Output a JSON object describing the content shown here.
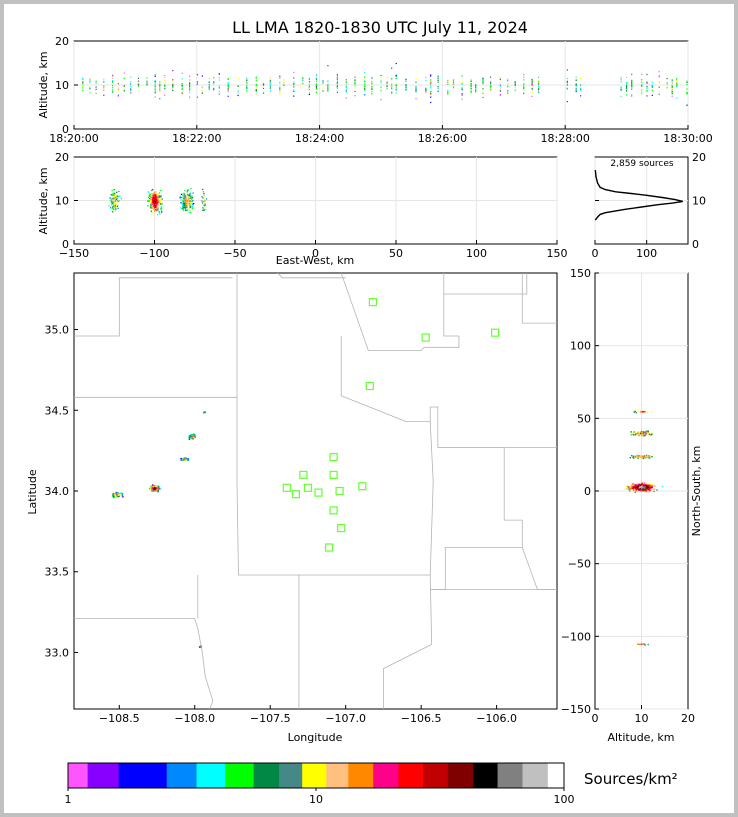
{
  "title": "LL LMA 1820-1830 UTC July 11, 2024",
  "chart_data": [
    {
      "panel": "altitude-time",
      "type": "scatter",
      "ylabel": "Altitude, km",
      "ylim": [
        0,
        20
      ],
      "yticks": [
        "0",
        "10",
        "20"
      ],
      "xticks": [
        "18:20:00",
        "18:22:00",
        "18:24:00",
        "18:26:00",
        "18:28:00",
        "18:30:00"
      ],
      "xlim_seconds": [
        0,
        600
      ],
      "grid": true,
      "note": "vertical streaks of sources around 5-15 km across the whole period"
    },
    {
      "panel": "altitude-eastwest",
      "type": "scatter",
      "xlabel": "East-West, km",
      "ylabel": "Altitude, km",
      "xlim": [
        -150,
        150
      ],
      "ylim": [
        0,
        20
      ],
      "xticks": [
        "−150",
        "−100",
        "−50",
        "0",
        "50",
        "100",
        "150"
      ],
      "yticks": [
        "0",
        "10",
        "20"
      ],
      "grid": true,
      "clusters_x_km": [
        -125,
        -100,
        -80,
        -70
      ]
    },
    {
      "panel": "altitude-histogram",
      "type": "line",
      "annotation": "2,859 sources",
      "xlim": [
        0,
        180
      ],
      "ylim": [
        0,
        20
      ],
      "xticks": [
        "0",
        "100"
      ],
      "yticks": [
        "0",
        "10",
        "20"
      ],
      "profile": [
        [
          0.5,
          5.5
        ],
        [
          5,
          6.2
        ],
        [
          10,
          6.8
        ],
        [
          20,
          7.2
        ],
        [
          40,
          7.6
        ],
        [
          60,
          8.0
        ],
        [
          90,
          8.5
        ],
        [
          120,
          9.0
        ],
        [
          150,
          9.4
        ],
        [
          170,
          9.8
        ],
        [
          155,
          10.2
        ],
        [
          130,
          10.7
        ],
        [
          100,
          11.2
        ],
        [
          70,
          11.6
        ],
        [
          40,
          12.0
        ],
        [
          20,
          12.5
        ],
        [
          10,
          13.0
        ],
        [
          5,
          14.0
        ],
        [
          2,
          15.5
        ],
        [
          0.5,
          17
        ]
      ]
    },
    {
      "panel": "plan-view",
      "type": "scatter",
      "xlabel": "Longitude",
      "ylabel": "Latitude",
      "xlim": [
        -108.8,
        -105.6
      ],
      "ylim": [
        32.65,
        35.35
      ],
      "xticks": [
        "−108.5",
        "−108.0",
        "−107.5",
        "−107.0",
        "−106.5",
        "−106.0"
      ],
      "yticks": [
        "33.0",
        "33.5",
        "34.0",
        "34.5",
        "35.0"
      ],
      "source_clusters": [
        {
          "lon": -108.52,
          "lat": 33.98
        },
        {
          "lon": -108.27,
          "lat": 34.02
        },
        {
          "lon": -108.07,
          "lat": 34.2
        },
        {
          "lon": -108.02,
          "lat": 34.34
        },
        {
          "lon": -107.94,
          "lat": 34.49
        },
        {
          "lon": -107.97,
          "lat": 33.04
        }
      ],
      "stations": [
        {
          "lon": -106.82,
          "lat": 35.17
        },
        {
          "lon": -106.47,
          "lat": 34.95
        },
        {
          "lon": -106.01,
          "lat": 34.98
        },
        {
          "lon": -106.84,
          "lat": 34.65
        },
        {
          "lon": -107.08,
          "lat": 34.21
        },
        {
          "lon": -107.28,
          "lat": 34.1
        },
        {
          "lon": -107.08,
          "lat": 34.1
        },
        {
          "lon": -107.39,
          "lat": 34.02
        },
        {
          "lon": -107.33,
          "lat": 33.98
        },
        {
          "lon": -107.25,
          "lat": 34.02
        },
        {
          "lon": -107.18,
          "lat": 33.99
        },
        {
          "lon": -107.04,
          "lat": 34.0
        },
        {
          "lon": -106.89,
          "lat": 34.03
        },
        {
          "lon": -107.08,
          "lat": 33.88
        },
        {
          "lon": -107.03,
          "lat": 33.77
        },
        {
          "lon": -107.11,
          "lat": 33.65
        }
      ]
    },
    {
      "panel": "northsouth-altitude",
      "type": "scatter",
      "xlabel": "Altitude, km",
      "ylabel": "North-South, km",
      "xlim": [
        0,
        20
      ],
      "ylim": [
        -150,
        150
      ],
      "xticks": [
        "0",
        "10",
        "20"
      ],
      "yticks": [
        "−150",
        "−100",
        "−50",
        "0",
        "50",
        "100",
        "150"
      ],
      "clusters_ns_km": [
        55,
        40,
        24,
        3,
        -105
      ]
    },
    {
      "panel": "colorbar",
      "type": "heatmap",
      "label": "Sources/km²",
      "scale": "log",
      "ticks": [
        "1",
        "10",
        "100"
      ],
      "colors": [
        "#ff55ff",
        "#8800ff",
        "#0000ff",
        "#0088ff",
        "#00ffff",
        "#00ff00",
        "#008844",
        "#448888",
        "#ffff00",
        "#ffc080",
        "#ff8800",
        "#ff0088",
        "#ff0000",
        "#c00000",
        "#800000",
        "#000000",
        "#808080",
        "#c0c0c0",
        "#ffffff"
      ],
      "color_bounds": [
        1.0,
        1.2,
        1.6,
        2.5,
        3.3,
        4.3,
        5.6,
        7.1,
        8.8,
        11,
        13.5,
        17,
        21.5,
        27,
        34,
        43,
        54,
        68,
        86,
        100
      ]
    }
  ]
}
